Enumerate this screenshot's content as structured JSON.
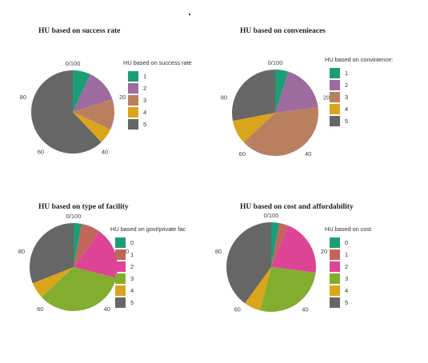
{
  "chart_data": [
    {
      "type": "pie",
      "title": "HU based on success rate",
      "legend_title": "HU based on success rate",
      "tick_labels": [
        "0/100",
        "20",
        "40",
        "60",
        "80"
      ],
      "slices": [
        {
          "label": "1",
          "value": 7,
          "color": "#1b9e77"
        },
        {
          "label": "2",
          "value": 13,
          "color": "#9e6b9e"
        },
        {
          "label": "3",
          "value": 12,
          "color": "#b9805f"
        },
        {
          "label": "4",
          "value": 6,
          "color": "#d9a51c"
        },
        {
          "label": "5",
          "value": 62,
          "color": "#666666"
        }
      ]
    },
    {
      "type": "pie",
      "title": "HU based on convenieaces",
      "legend_title": "HU based on convinience:",
      "tick_labels": [
        "0/100",
        "20",
        "40",
        "60",
        "80"
      ],
      "slices": [
        {
          "label": "1",
          "value": 5,
          "color": "#1b9e77"
        },
        {
          "label": "2",
          "value": 18,
          "color": "#9e6b9e"
        },
        {
          "label": "3",
          "value": 40,
          "color": "#b9805f"
        },
        {
          "label": "4",
          "value": 9,
          "color": "#d9a51c"
        },
        {
          "label": "5",
          "value": 28,
          "color": "#666666"
        }
      ]
    },
    {
      "type": "pie",
      "title": "HU based on type of facility",
      "legend_title": "HU based on govt/private fac",
      "tick_labels": [
        "0/100",
        "20",
        "40",
        "60",
        "80"
      ],
      "slices": [
        {
          "label": "0",
          "value": 3,
          "color": "#1b9e77"
        },
        {
          "label": "1",
          "value": 7,
          "color": "#c0675a"
        },
        {
          "label": "2",
          "value": 19,
          "color": "#de4495"
        },
        {
          "label": "3",
          "value": 34,
          "color": "#82ad2f"
        },
        {
          "label": "4",
          "value": 6,
          "color": "#d9a51c"
        },
        {
          "label": "5",
          "value": 31,
          "color": "#666666"
        }
      ]
    },
    {
      "type": "pie",
      "title": "HU based on cost and affordability",
      "legend_title": "HU based on cost",
      "tick_labels": [
        "0/100",
        "20",
        "40",
        "60",
        "80"
      ],
      "slices": [
        {
          "label": "0",
          "value": 3,
          "color": "#1b9e77"
        },
        {
          "label": "1",
          "value": 3,
          "color": "#c0675a"
        },
        {
          "label": "2",
          "value": 21,
          "color": "#de4495"
        },
        {
          "label": "3",
          "value": 27,
          "color": "#82ad2f"
        },
        {
          "label": "4",
          "value": 6,
          "color": "#d9a51c"
        },
        {
          "label": "5",
          "value": 40,
          "color": "#666666"
        }
      ]
    }
  ]
}
